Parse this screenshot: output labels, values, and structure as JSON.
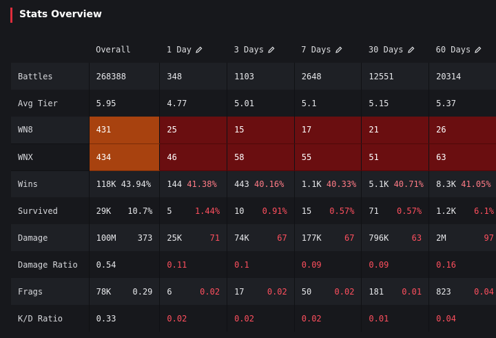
{
  "header": {
    "title": "Stats Overview"
  },
  "columns": [
    "Overall",
    "1 Day",
    "3 Days",
    "7 Days",
    "30 Days",
    "60 Days"
  ],
  "rows": {
    "battles": {
      "label": "Battles",
      "v": [
        "268388",
        "348",
        "1103",
        "2648",
        "12551",
        "20314"
      ]
    },
    "avg_tier": {
      "label": "Avg Tier",
      "v": [
        "5.95",
        "4.77",
        "5.01",
        "5.1",
        "5.15",
        "5.37"
      ]
    },
    "wn8": {
      "label": "WN8",
      "v": [
        "431",
        "25",
        "15",
        "17",
        "21",
        "26"
      ]
    },
    "wnx": {
      "label": "WNX",
      "v": [
        "434",
        "46",
        "58",
        "55",
        "51",
        "63"
      ]
    },
    "wins": {
      "label": "Wins",
      "a": [
        "118K",
        "144",
        "443",
        "1.1K",
        "5.1K",
        "8.3K"
      ],
      "b": [
        "43.94%",
        "41.38%",
        "40.16%",
        "40.33%",
        "40.71%",
        "41.05%"
      ]
    },
    "survived": {
      "label": "Survived",
      "a": [
        "29K",
        "5",
        "10",
        "15",
        "71",
        "1.2K"
      ],
      "b": [
        "10.7%",
        "1.44%",
        "0.91%",
        "0.57%",
        "0.57%",
        "6.1%"
      ]
    },
    "damage": {
      "label": "Damage",
      "a": [
        "100M",
        "25K",
        "74K",
        "177K",
        "796K",
        "2M"
      ],
      "b": [
        "373",
        "71",
        "67",
        "67",
        "63",
        "97"
      ]
    },
    "damage_ratio": {
      "label": "Damage Ratio",
      "v": [
        "0.54",
        "0.11",
        "0.1",
        "0.09",
        "0.09",
        "0.16"
      ]
    },
    "frags": {
      "label": "Frags",
      "a": [
        "78K",
        "6",
        "17",
        "50",
        "181",
        "823"
      ],
      "b": [
        "0.29",
        "0.02",
        "0.02",
        "0.02",
        "0.01",
        "0.04"
      ]
    },
    "kd_ratio": {
      "label": "K/D Ratio",
      "v": [
        "0.33",
        "0.02",
        "0.02",
        "0.02",
        "0.01",
        "0.04"
      ]
    }
  },
  "colors": {
    "accent": "#e02d3c",
    "orange_cell": "#a8420f",
    "dark_red_cell": "#6a0e10",
    "negative_text": "#ff4f5e",
    "pink_text": "#ff7b86"
  },
  "icons": {
    "edit": "pencil-icon"
  }
}
